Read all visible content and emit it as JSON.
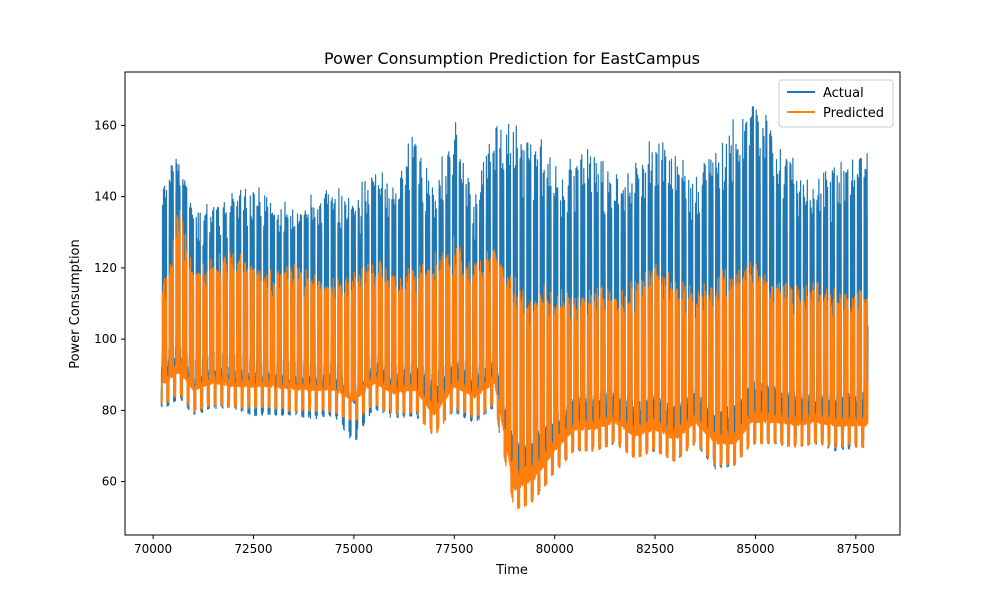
{
  "chart_data": {
    "type": "line",
    "title": "Power Consumption Prediction for EastCampus",
    "xlabel": "Time",
    "ylabel": "Power Consumption",
    "xlim": [
      69300,
      88600
    ],
    "ylim": [
      45,
      175
    ],
    "x_ticks": [
      70000,
      72500,
      75000,
      77500,
      80000,
      82500,
      85000,
      87500
    ],
    "x_tick_labels": [
      "70000",
      "72500",
      "75000",
      "77500",
      "80000",
      "82500",
      "85000",
      "87500"
    ],
    "y_ticks": [
      60,
      80,
      100,
      120,
      140,
      160
    ],
    "y_tick_labels": [
      "60",
      "80",
      "100",
      "120",
      "140",
      "160"
    ],
    "grid": false,
    "legend_position": "top-right",
    "x_range": [
      70200,
      87800
    ],
    "sampling": "hourly",
    "series": [
      {
        "name": "Actual",
        "color": "#1f77b4",
        "envelope_x": [
          70300,
          70650,
          71000,
          71500,
          72000,
          72500,
          73000,
          73500,
          74000,
          74500,
          75000,
          75500,
          76000,
          76500,
          77000,
          77500,
          78000,
          78500,
          79000,
          79500,
          80000,
          80500,
          81000,
          81500,
          82000,
          82500,
          83000,
          83500,
          84000,
          84500,
          84900,
          85500,
          86000,
          86500,
          87000,
          87500
        ],
        "envelope_high": [
          145,
          155,
          137,
          139,
          141,
          143,
          141,
          137,
          141,
          143,
          140,
          150,
          142,
          160,
          143,
          164,
          140,
          161,
          160,
          158,
          152,
          150,
          155,
          147,
          149,
          158,
          156,
          147,
          158,
          162,
          170,
          158,
          150,
          145,
          149,
          156
        ],
        "envelope_low": [
          80,
          83,
          78,
          80,
          80,
          78,
          78,
          78,
          77,
          78,
          70,
          80,
          77,
          78,
          74,
          79,
          76,
          80,
          52,
          54,
          62,
          68,
          68,
          70,
          66,
          68,
          65,
          70,
          63,
          64,
          70,
          70,
          69,
          70,
          68,
          69
        ]
      },
      {
        "name": "Predicted",
        "color": "#ff7f0e",
        "envelope_x": [
          70300,
          70650,
          71000,
          71500,
          72000,
          72500,
          73000,
          73500,
          74000,
          74500,
          75000,
          75500,
          76000,
          76500,
          77000,
          77500,
          78000,
          78500,
          79000,
          79500,
          80000,
          80500,
          81000,
          81500,
          82000,
          82500,
          83000,
          83500,
          84000,
          84500,
          84900,
          85500,
          86000,
          86500,
          87000,
          87500
        ],
        "envelope_high": [
          117,
          139,
          121,
          124,
          126,
          121,
          119,
          121,
          119,
          117,
          121,
          125,
          119,
          120,
          124,
          129,
          121,
          127,
          119,
          114,
          116,
          113,
          118,
          113,
          117,
          122,
          118,
          114,
          119,
          120,
          122,
          117,
          115,
          116,
          115,
          114
        ],
        "envelope_low": [
          81,
          84,
          79,
          81,
          80,
          80,
          80,
          79,
          79,
          79,
          76,
          81,
          78,
          79,
          72,
          80,
          77,
          81,
          51,
          54,
          62,
          68,
          68,
          70,
          66,
          68,
          65,
          70,
          64,
          64,
          70,
          70,
          69,
          70,
          69,
          69
        ]
      }
    ]
  }
}
